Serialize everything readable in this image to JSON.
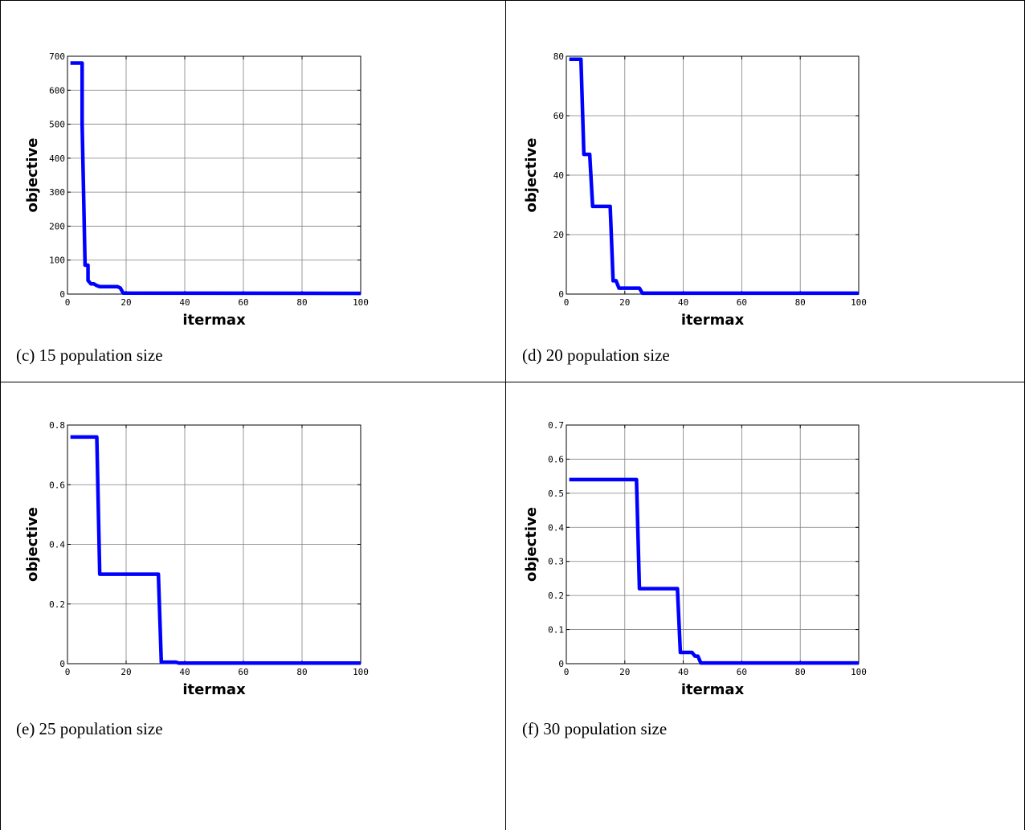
{
  "panels": [
    {
      "caption": "(c) 15 population size"
    },
    {
      "caption": "(d) 20 population size"
    },
    {
      "caption": "(e) 25 population size"
    },
    {
      "caption": "(f) 30 population size"
    }
  ],
  "colors": {
    "line": "#0000ff",
    "grid": "#7f7f7f",
    "axes": "#000000"
  },
  "chart_data": [
    {
      "type": "line",
      "xlabel": "itermax",
      "ylabel": "objective",
      "xlim": [
        0,
        100
      ],
      "ylim": [
        0,
        700
      ],
      "xticks": [
        "0",
        "20",
        "40",
        "60",
        "80",
        "100"
      ],
      "yticks": [
        "0",
        "100",
        "200",
        "300",
        "400",
        "500",
        "600",
        "700"
      ],
      "grid": true,
      "x": [
        1,
        5,
        5,
        6,
        7,
        7,
        8,
        9,
        10,
        11,
        15,
        17,
        18,
        19,
        100
      ],
      "y": [
        680,
        680,
        500,
        85,
        85,
        40,
        30,
        30,
        25,
        22,
        22,
        22,
        18,
        3,
        2
      ]
    },
    {
      "type": "line",
      "xlabel": "itermax",
      "ylabel": "objective",
      "xlim": [
        0,
        100
      ],
      "ylim": [
        0,
        80
      ],
      "xticks": [
        "0",
        "20",
        "40",
        "60",
        "80",
        "100"
      ],
      "yticks": [
        "0",
        "20",
        "40",
        "60",
        "80"
      ],
      "grid": true,
      "x": [
        1,
        5,
        6,
        8,
        9,
        14,
        15,
        16,
        17,
        18,
        25,
        26,
        100
      ],
      "y": [
        79,
        79,
        47,
        47,
        29.5,
        29.5,
        29.5,
        4.5,
        4.5,
        2,
        2,
        0.3,
        0.3
      ]
    },
    {
      "type": "line",
      "xlabel": "itermax",
      "ylabel": "objective",
      "xlim": [
        0,
        100
      ],
      "ylim": [
        0,
        0.8
      ],
      "xticks": [
        "0",
        "20",
        "40",
        "60",
        "80",
        "100"
      ],
      "yticks": [
        "0",
        "0.2",
        "0.4",
        "0.6",
        "0.8"
      ],
      "grid": true,
      "x": [
        1,
        10,
        11,
        31,
        32,
        37,
        38,
        100
      ],
      "y": [
        0.76,
        0.76,
        0.3,
        0.3,
        0.005,
        0.005,
        0.002,
        0.002
      ]
    },
    {
      "type": "line",
      "xlabel": "itermax",
      "ylabel": "objective",
      "xlim": [
        0,
        100
      ],
      "ylim": [
        0,
        0.7
      ],
      "xticks": [
        "0",
        "20",
        "40",
        "60",
        "80",
        "100"
      ],
      "yticks": [
        "0",
        "0.1",
        "0.2",
        "0.3",
        "0.4",
        "0.5",
        "0.6",
        "0.7"
      ],
      "grid": true,
      "x": [
        1,
        24,
        25,
        38,
        39,
        43,
        44,
        45,
        46,
        100
      ],
      "y": [
        0.54,
        0.54,
        0.22,
        0.22,
        0.033,
        0.033,
        0.022,
        0.022,
        0.002,
        0.002
      ]
    }
  ]
}
